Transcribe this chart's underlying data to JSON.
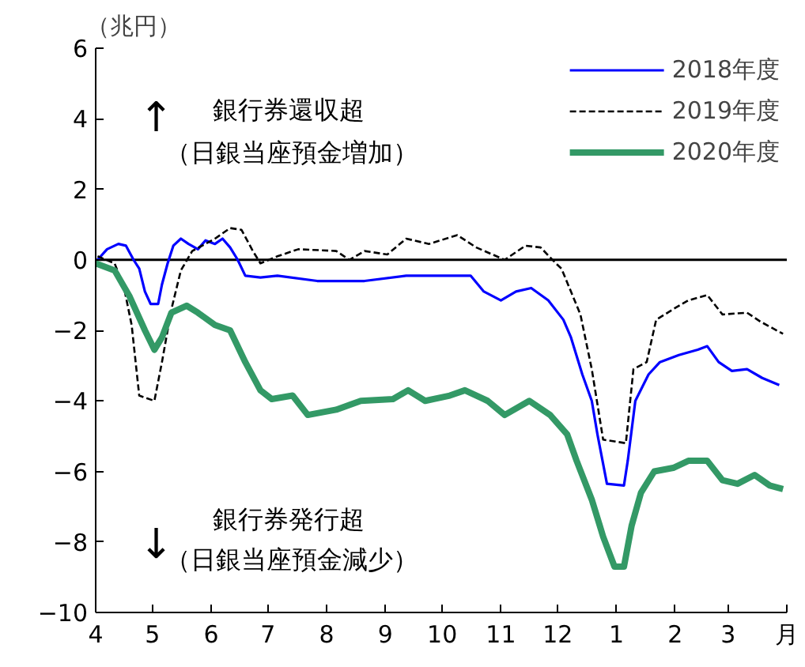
{
  "chart_data": {
    "type": "line",
    "ylabel": "（兆円）",
    "xlabel": "月",
    "xlim": [
      "2020-04-01",
      "2021-04-01"
    ],
    "xticks": [
      {
        "value": "2020-04-01",
        "label": "4"
      },
      {
        "value": "2020-05-01",
        "label": "5"
      },
      {
        "value": "2020-06-01",
        "label": "6"
      },
      {
        "value": "2020-07-01",
        "label": "7"
      },
      {
        "value": "2020-08-01",
        "label": "8"
      },
      {
        "value": "2020-09-01",
        "label": "9"
      },
      {
        "value": "2020-10-01",
        "label": "10"
      },
      {
        "value": "2020-11-01",
        "label": "11"
      },
      {
        "value": "2020-12-01",
        "label": "12"
      },
      {
        "value": "2021-01-01",
        "label": "1"
      },
      {
        "value": "2021-02-01",
        "label": "2"
      },
      {
        "value": "2021-03-01",
        "label": "3"
      }
    ],
    "ylim": [
      -10,
      6
    ],
    "yticks": [
      -10,
      -8,
      -6,
      -4,
      -2,
      0,
      2,
      4,
      6
    ],
    "grid": false,
    "legend": "top right",
    "marker": "none",
    "ref_lines": [
      {
        "axis": "y",
        "value": 0,
        "color": "#000000"
      }
    ],
    "annotations": [
      "↑",
      "銀行券還収超",
      "（日銀当座預金増加）",
      "↓",
      "銀行券発行超",
      "（日銀当座預金減少）"
    ],
    "series": [
      {
        "name": "2018年度",
        "color": "#0000ff",
        "line_style": "solid",
        "x": [
          "2020-04-02",
          "2020-04-07",
          "2020-04-13",
          "2020-04-17",
          "2020-04-21",
          "2020-04-24",
          "2020-04-27",
          "2020-04-30",
          "2020-05-04",
          "2020-05-06",
          "2020-05-09",
          "2020-05-12",
          "2020-05-16",
          "2020-05-20",
          "2020-05-25",
          "2020-05-29",
          "2020-06-03",
          "2020-06-07",
          "2020-06-11",
          "2020-06-15",
          "2020-06-19",
          "2020-06-27",
          "2020-07-06",
          "2020-07-27",
          "2020-08-21",
          "2020-09-12",
          "2020-10-16",
          "2020-10-23",
          "2020-11-01",
          "2020-11-09",
          "2020-11-17",
          "2020-11-26",
          "2020-12-04",
          "2020-12-08",
          "2020-12-14",
          "2020-12-19",
          "2020-12-22",
          "2020-12-27",
          "2021-01-05",
          "2021-01-07",
          "2021-01-11",
          "2021-01-18",
          "2021-01-24",
          "2021-02-03",
          "2021-02-13",
          "2021-02-18",
          "2021-02-24",
          "2021-03-03",
          "2021-03-11",
          "2021-03-19",
          "2021-03-28"
        ],
        "values": [
          0,
          0.3,
          0.45,
          0.4,
          0,
          -0.25,
          -0.9,
          -1.25,
          -1.25,
          -0.7,
          -0.1,
          0.4,
          0.6,
          0.45,
          0.3,
          0.55,
          0.45,
          0.6,
          0.35,
          0,
          -0.45,
          -0.5,
          -0.45,
          -0.6,
          -0.6,
          -0.45,
          -0.45,
          -0.9,
          -1.15,
          -0.9,
          -0.8,
          -1.15,
          -1.7,
          -2.2,
          -3.25,
          -4.0,
          -4.95,
          -6.35,
          -6.4,
          -5.7,
          -4.0,
          -3.25,
          -2.9,
          -2.7,
          -2.55,
          -2.45,
          -2.9,
          -3.15,
          -3.1,
          -3.35,
          -3.55
        ]
      },
      {
        "name": "2019年度",
        "color": "#000000",
        "line_style": "dashed",
        "x": [
          "2020-04-02",
          "2020-04-11",
          "2020-04-16",
          "2020-04-20",
          "2020-04-24",
          "2020-05-02",
          "2020-05-06",
          "2020-05-11",
          "2020-05-16",
          "2020-05-22",
          "2020-06-03",
          "2020-06-11",
          "2020-06-17",
          "2020-06-23",
          "2020-06-27",
          "2020-07-06",
          "2020-07-17",
          "2020-08-06",
          "2020-08-13",
          "2020-08-21",
          "2020-09-02",
          "2020-09-12",
          "2020-09-24",
          "2020-10-09",
          "2020-10-19",
          "2020-11-03",
          "2020-11-14",
          "2020-11-22",
          "2020-11-30",
          "2020-12-03",
          "2020-12-13",
          "2020-12-19",
          "2020-12-25",
          "2021-01-06",
          "2021-01-10",
          "2021-01-17",
          "2021-01-22",
          "2021-01-31",
          "2021-02-08",
          "2021-02-18",
          "2021-02-26",
          "2021-03-11",
          "2021-03-18",
          "2021-03-30"
        ],
        "values": [
          0.1,
          -0.1,
          -0.8,
          -1.85,
          -3.85,
          -4.0,
          -2.9,
          -1.4,
          -0.3,
          0.25,
          0.6,
          0.9,
          0.85,
          0.25,
          -0.1,
          0.1,
          0.3,
          0.25,
          0,
          0.25,
          0.15,
          0.6,
          0.45,
          0.7,
          0.35,
          0,
          0.4,
          0.35,
          -0.1,
          -0.25,
          -1.55,
          -3.1,
          -5.1,
          -5.2,
          -3.1,
          -2.9,
          -1.7,
          -1.4,
          -1.15,
          -1.0,
          -1.55,
          -1.5,
          -1.75,
          -2.1
        ]
      },
      {
        "name": "2020年度",
        "color": "#339966",
        "line_style": "solid",
        "x": [
          "2020-04-01",
          "2020-04-11",
          "2020-04-19",
          "2020-04-27",
          "2020-05-02",
          "2020-05-06",
          "2020-05-11",
          "2020-05-19",
          "2020-05-25",
          "2020-06-03",
          "2020-06-11",
          "2020-06-19",
          "2020-06-27",
          "2020-07-03",
          "2020-07-14",
          "2020-07-22",
          "2020-08-06",
          "2020-08-19",
          "2020-09-05",
          "2020-09-13",
          "2020-09-22",
          "2020-10-05",
          "2020-10-13",
          "2020-10-25",
          "2020-11-03",
          "2020-11-16",
          "2020-11-27",
          "2020-12-06",
          "2020-12-11",
          "2020-12-19",
          "2020-12-25",
          "2020-12-31",
          "2021-01-05",
          "2021-01-09",
          "2021-01-14",
          "2021-01-21",
          "2021-01-31",
          "2021-02-08",
          "2021-02-18",
          "2021-02-26",
          "2021-03-06",
          "2021-03-15",
          "2021-03-23",
          "2021-03-30"
        ],
        "values": [
          -0.1,
          -0.3,
          -1.05,
          -2.0,
          -2.55,
          -2.2,
          -1.5,
          -1.3,
          -1.5,
          -1.85,
          -2.0,
          -2.9,
          -3.7,
          -3.95,
          -3.85,
          -4.4,
          -4.25,
          -4.0,
          -3.95,
          -3.7,
          -4.0,
          -3.85,
          -3.7,
          -4.0,
          -4.4,
          -4.0,
          -4.4,
          -4.95,
          -5.7,
          -6.8,
          -7.85,
          -8.7,
          -8.7,
          -7.55,
          -6.6,
          -6.0,
          -5.9,
          -5.7,
          -5.7,
          -6.25,
          -6.35,
          -6.1,
          -6.4,
          -6.5
        ]
      }
    ]
  }
}
